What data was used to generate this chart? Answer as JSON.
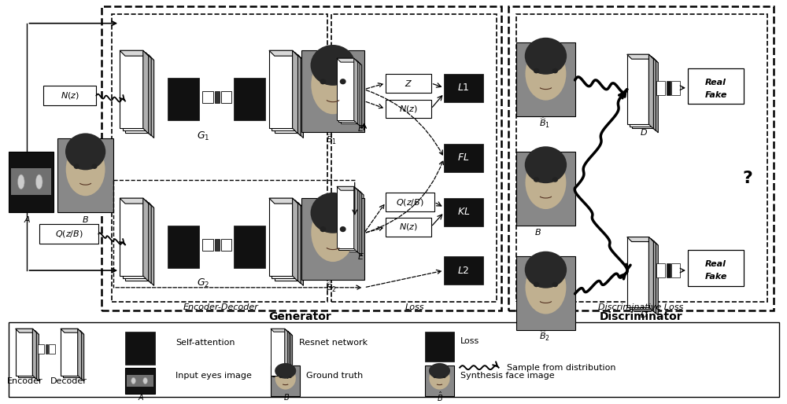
{
  "bg_color": "#ffffff",
  "fig_width": 10.0,
  "fig_height": 5.14,
  "generator_label": "Generator",
  "discriminator_label": "Discriminator",
  "encoder_decoder_label": "Encoder-Decoder",
  "loss_label": "Loss",
  "discriminative_loss_label": "Discriminative Loss"
}
